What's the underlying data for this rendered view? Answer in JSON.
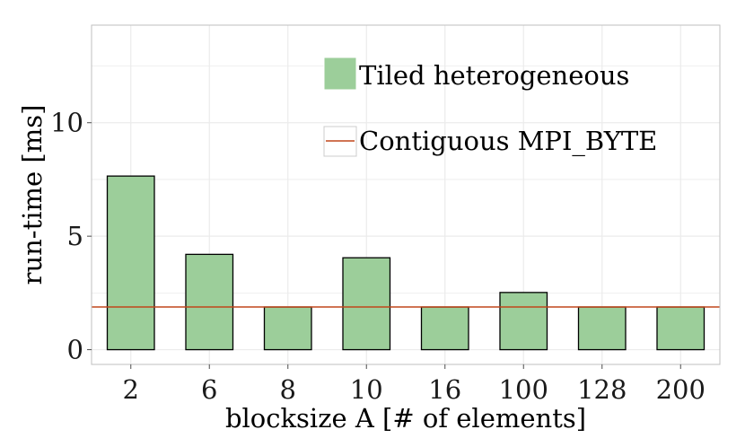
{
  "chart_data": {
    "type": "bar",
    "title": "",
    "xlabel": "blocksize A [# of elements]",
    "ylabel": "run-time [ms]",
    "categories": [
      "2",
      "6",
      "8",
      "10",
      "16",
      "100",
      "128",
      "200"
    ],
    "series": [
      {
        "name": "Tiled heterogeneous",
        "type": "bar",
        "values": [
          7.65,
          4.2,
          1.88,
          4.05,
          1.88,
          2.52,
          1.88,
          1.88
        ],
        "color": "#9cce9a"
      },
      {
        "name": "Contiguous MPI_BYTE",
        "type": "hline",
        "value": 1.88,
        "color": "#c0461b"
      }
    ],
    "yticks": [
      0,
      5,
      10
    ],
    "ytick_labels": [
      "0",
      "5",
      "10"
    ],
    "ylim": [
      -0.65,
      14.3
    ],
    "grid": true,
    "legend_position": "top-right",
    "colors": {
      "panel_background": "#ffffff",
      "grid": "#ebebeb",
      "bar_outline": "#000000"
    }
  }
}
